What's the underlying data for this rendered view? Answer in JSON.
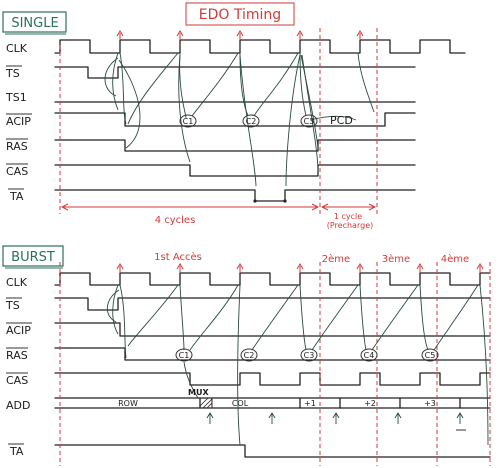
{
  "title": "EDO Timing",
  "single": {
    "heading": "SINGLE",
    "signals": [
      "CLK",
      "TS",
      "TS1",
      "ACIP",
      "RAS",
      "CAS",
      "TA"
    ],
    "cycle_marks": [
      "C1",
      "C2",
      "C3"
    ],
    "pcd_label": "PCD",
    "span_main": "4 cycles",
    "span_extra_line1": "1 cycle",
    "span_extra_line2": "(Precharge)"
  },
  "burst": {
    "heading": "BURST",
    "signals": [
      "CLK",
      "TS",
      "ACIP",
      "RAS",
      "CAS",
      "ADD",
      "TA"
    ],
    "phase_labels": [
      "1st Accès",
      "2ème",
      "3ème",
      "4ème"
    ],
    "cycle_marks": [
      "C1",
      "C2",
      "C3",
      "C4",
      "C5"
    ],
    "addr_labels": [
      "ROW",
      "COL",
      "+1",
      "+2",
      "+3"
    ],
    "mux_label": "MUX"
  },
  "colors": {
    "ink": "#222222",
    "accent_red": "#d43a3a",
    "heading_green": "#2d6e5c"
  }
}
